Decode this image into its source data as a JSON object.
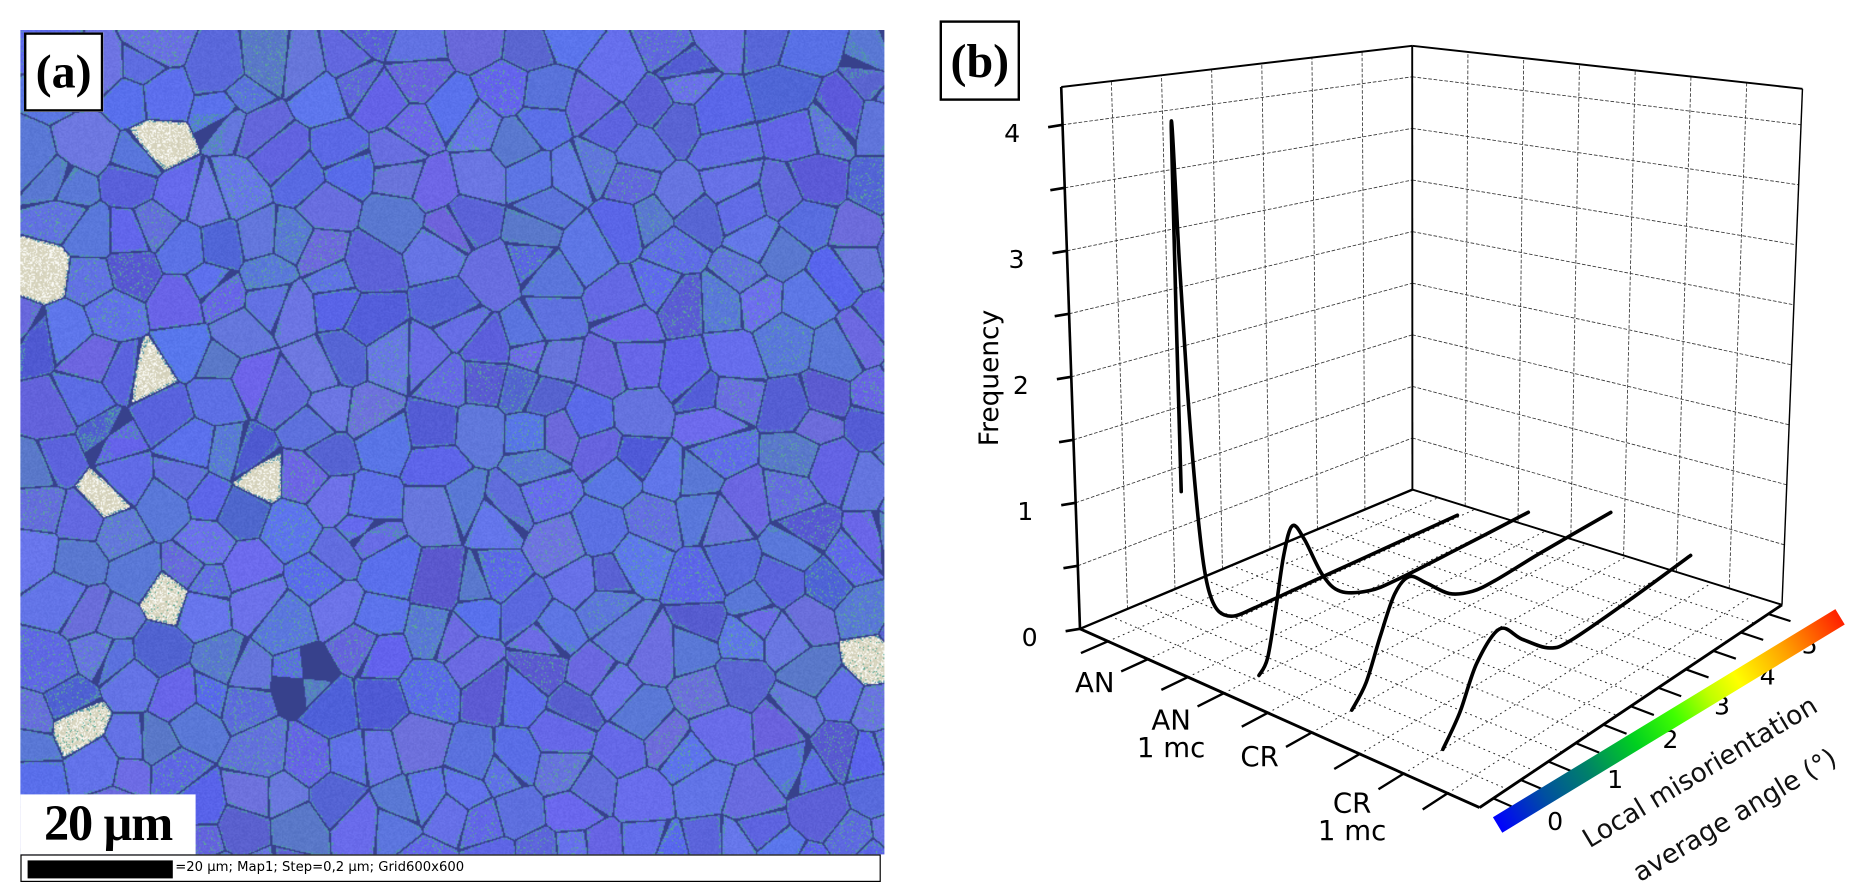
{
  "panel_a": {
    "label": "(a)",
    "scale_label": "20 µm",
    "footer_text": "=20 µm; Map1; Step=0,2 µm; Grid600x600",
    "map_colors": {
      "grain": "#5f68e0",
      "boundary": "#3c4496",
      "texture": "#5ab4a0",
      "inclusion": "#d8d4bc"
    }
  },
  "panel_b": {
    "label": "(b)"
  },
  "chart_data": {
    "type": "line",
    "projection": "3d",
    "ylabel": "Frequency",
    "ylim": [
      0,
      4.3
    ],
    "yticks": [
      "0",
      "1",
      "2",
      "3",
      "4"
    ],
    "xlim": [
      0,
      5.5
    ],
    "grid": true,
    "categories": [
      [
        "AN"
      ],
      [
        "AN",
        "1 mc"
      ],
      [
        "CR"
      ],
      [
        "CR",
        "1 mc"
      ]
    ],
    "colorbar": {
      "label_line1": "Local misorientation",
      "label_line2": "average angle (°)",
      "ticks": [
        "0",
        "1",
        "2",
        "3",
        "4",
        "5"
      ],
      "colors": [
        "#0000ff",
        "#00806a",
        "#00ff00",
        "#ffff00",
        "#ffa000",
        "#ff0000"
      ]
    },
    "series": [
      {
        "name": "AN",
        "x": [
          0.62,
          0.6,
          0.68,
          0.76,
          0.85,
          0.95,
          1.05,
          1.2,
          1.45,
          1.8,
          2.5,
          3.5,
          4.5,
          5.2
        ],
        "y": [
          1.2,
          4.1,
          3.0,
          2.0,
          1.2,
          0.6,
          0.3,
          0.12,
          0.03,
          0.02,
          0.02,
          0.02,
          0.02,
          0.02
        ]
      },
      {
        "name": "AN 1 mc",
        "x": [
          0.6,
          0.75,
          0.9,
          1.05,
          1.2,
          1.4,
          1.7,
          2.0,
          2.5,
          3.0,
          4.0,
          5.2
        ],
        "y": [
          0.0,
          0.1,
          0.45,
          0.85,
          1.05,
          0.9,
          0.55,
          0.35,
          0.24,
          0.22,
          0.23,
          0.25
        ]
      },
      {
        "name": "CR",
        "x": [
          0.7,
          0.95,
          1.2,
          1.45,
          1.7,
          2.0,
          2.4,
          2.8,
          3.2,
          4.0,
          5.2
        ],
        "y": [
          0.0,
          0.15,
          0.45,
          0.72,
          0.8,
          0.68,
          0.5,
          0.42,
          0.41,
          0.44,
          0.47
        ]
      },
      {
        "name": "CR 1 mc",
        "x": [
          0.7,
          1.0,
          1.3,
          1.7,
          2.1,
          2.6,
          3.0,
          4.0,
          5.1
        ],
        "y": [
          0.0,
          0.2,
          0.5,
          0.66,
          0.48,
          0.28,
          0.24,
          0.28,
          0.35
        ]
      }
    ]
  }
}
